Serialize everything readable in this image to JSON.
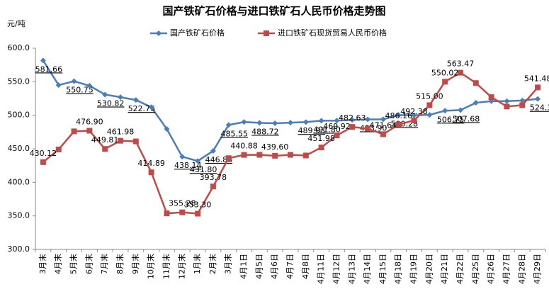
{
  "chart_data": {
    "type": "line",
    "title": "国产铁矿石价格与进口铁矿石人民币价格走势图",
    "y_label": "元/吨",
    "categories": [
      "3月末",
      "4月末",
      "5月末",
      "6月末",
      "7月末",
      "8月末",
      "9月末",
      "10月末",
      "11月末",
      "12月末",
      "1月末",
      "2月末",
      "3月末",
      "4月1日",
      "4月5日",
      "4月6日",
      "4月7日",
      "4月8日",
      "4月11日",
      "4月12日",
      "4月13日",
      "4月14日",
      "4月15日",
      "4月18日",
      "4月19日",
      "4月20日",
      "4月21日",
      "4月22日",
      "4月25日",
      "4月26日",
      "4月27日",
      "4月28日",
      "4月29日"
    ],
    "series": [
      {
        "name": "国产铁矿石价格",
        "color": "#4a7ebb",
        "marker": "diamond",
        "values": [
          581.66,
          545,
          550.75,
          544,
          530.82,
          527,
          522.76,
          512,
          479.5,
          438.14,
          431.8,
          446.88,
          485.55,
          490,
          488.72,
          488,
          489,
          489.93,
          491.8,
          492,
          493,
          493.9,
          494,
          500.28,
          500,
          500.6,
          506.75,
          507.68,
          518.6,
          521,
          521,
          522,
          524.3
        ],
        "value_labels": [
          "581.66",
          null,
          "550.75",
          null,
          "530.82",
          null,
          "522.76",
          null,
          null,
          "438.14",
          "431.80",
          "446.88",
          "485.55",
          null,
          "488.72",
          null,
          null,
          "489.93",
          "491.80",
          null,
          null,
          "493.90",
          null,
          "500.28",
          null,
          null,
          "506.75",
          "507.68",
          null,
          null,
          null,
          null,
          "524.30"
        ]
      },
      {
        "name": "进口铁矿石现货贸易人民币价格",
        "color": "#be4b48",
        "marker": "square",
        "values": [
          430.12,
          449,
          476,
          476.9,
          449.81,
          461.98,
          461,
          414.89,
          353.7,
          355.28,
          353.3,
          393.78,
          436,
          440.88,
          441,
          439.6,
          441,
          440,
          451.98,
          469.92,
          482.63,
          480,
          471.64,
          486.16,
          492.38,
          515.0,
          550.02,
          563.47,
          548,
          527,
          513,
          515,
          541.48
        ],
        "value_labels": [
          "430.12",
          null,
          null,
          "476.90",
          "449.81",
          "461.98",
          null,
          "414.89",
          null,
          "355.28",
          "353.30",
          "393.78",
          null,
          "440.88",
          null,
          "439.60",
          null,
          null,
          "451.98",
          "469.92",
          "482.63",
          null,
          "471.64",
          "486.16",
          "492.38",
          "515.00",
          "550.02",
          "563.47",
          null,
          null,
          null,
          null,
          "541.48"
        ]
      }
    ],
    "ylim": [
      300,
      600
    ],
    "yticks": [
      {
        "value": 300,
        "label": "300.0"
      },
      {
        "value": 350,
        "label": "350.0"
      },
      {
        "value": 400,
        "label": "400.0"
      },
      {
        "value": 450,
        "label": "450.0"
      },
      {
        "value": 500,
        "label": "500.0"
      },
      {
        "value": 550,
        "label": "550.0"
      },
      {
        "value": 600,
        "label": "600.0"
      }
    ],
    "grid": false,
    "legend": "top"
  }
}
